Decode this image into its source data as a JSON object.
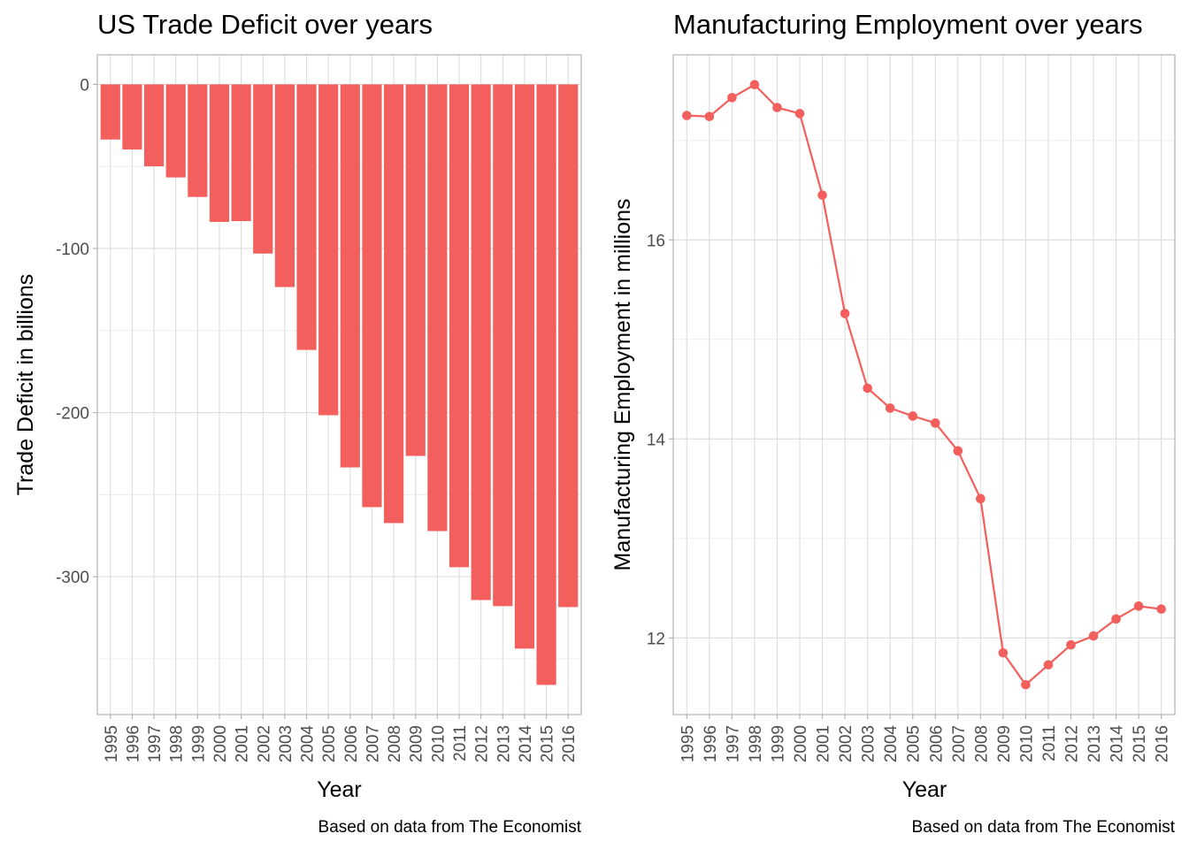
{
  "chart_data": [
    {
      "type": "bar",
      "title": "US Trade Deficit over years",
      "xlabel": "Year",
      "ylabel": "Trade Deficit in billions",
      "caption": "Based on data from The Economist",
      "categories": [
        "1995",
        "1996",
        "1997",
        "1998",
        "1999",
        "2000",
        "2001",
        "2002",
        "2003",
        "2004",
        "2005",
        "2006",
        "2007",
        "2008",
        "2009",
        "2010",
        "2011",
        "2012",
        "2013",
        "2014",
        "2015",
        "2016"
      ],
      "values": [
        -33.6,
        -39.7,
        -49.9,
        -56.7,
        -68.6,
        -83.8,
        -83.3,
        -103.1,
        -123.5,
        -161.8,
        -201.6,
        -233.4,
        -257.6,
        -267.3,
        -226.4,
        -272.2,
        -294.2,
        -314.2,
        -317.9,
        -343.8,
        -365.9,
        -318.5
      ],
      "yticks": [
        0,
        -100,
        -200,
        -300
      ],
      "ytick_labels": [
        "0",
        "-100",
        "-200",
        "-300"
      ],
      "yminor": [
        -50,
        -150,
        -250,
        -350
      ],
      "ylim": [
        -384,
        18
      ],
      "grid": true,
      "color": "#F25F5C"
    },
    {
      "type": "line",
      "title": "Manufacturing Employment over years",
      "xlabel": "Year",
      "ylabel": "Manufacturing Employment in millions",
      "caption": "Based on data from The Economist",
      "categories": [
        "1995",
        "1996",
        "1997",
        "1998",
        "1999",
        "2000",
        "2001",
        "2002",
        "2003",
        "2004",
        "2005",
        "2006",
        "2007",
        "2008",
        "2009",
        "2010",
        "2011",
        "2012",
        "2013",
        "2014",
        "2015",
        "2016"
      ],
      "values": [
        17.25,
        17.24,
        17.43,
        17.56,
        17.33,
        17.27,
        16.45,
        15.26,
        14.51,
        14.31,
        14.23,
        14.16,
        13.88,
        13.4,
        11.85,
        11.53,
        11.73,
        11.93,
        12.02,
        12.19,
        12.32,
        12.29
      ],
      "yticks": [
        12,
        14,
        16
      ],
      "ytick_labels": [
        "12",
        "14",
        "16"
      ],
      "yminor": [
        13,
        15,
        17
      ],
      "ylim": [
        11.23,
        17.86
      ],
      "grid": true,
      "color": "#F25F5C"
    }
  ]
}
